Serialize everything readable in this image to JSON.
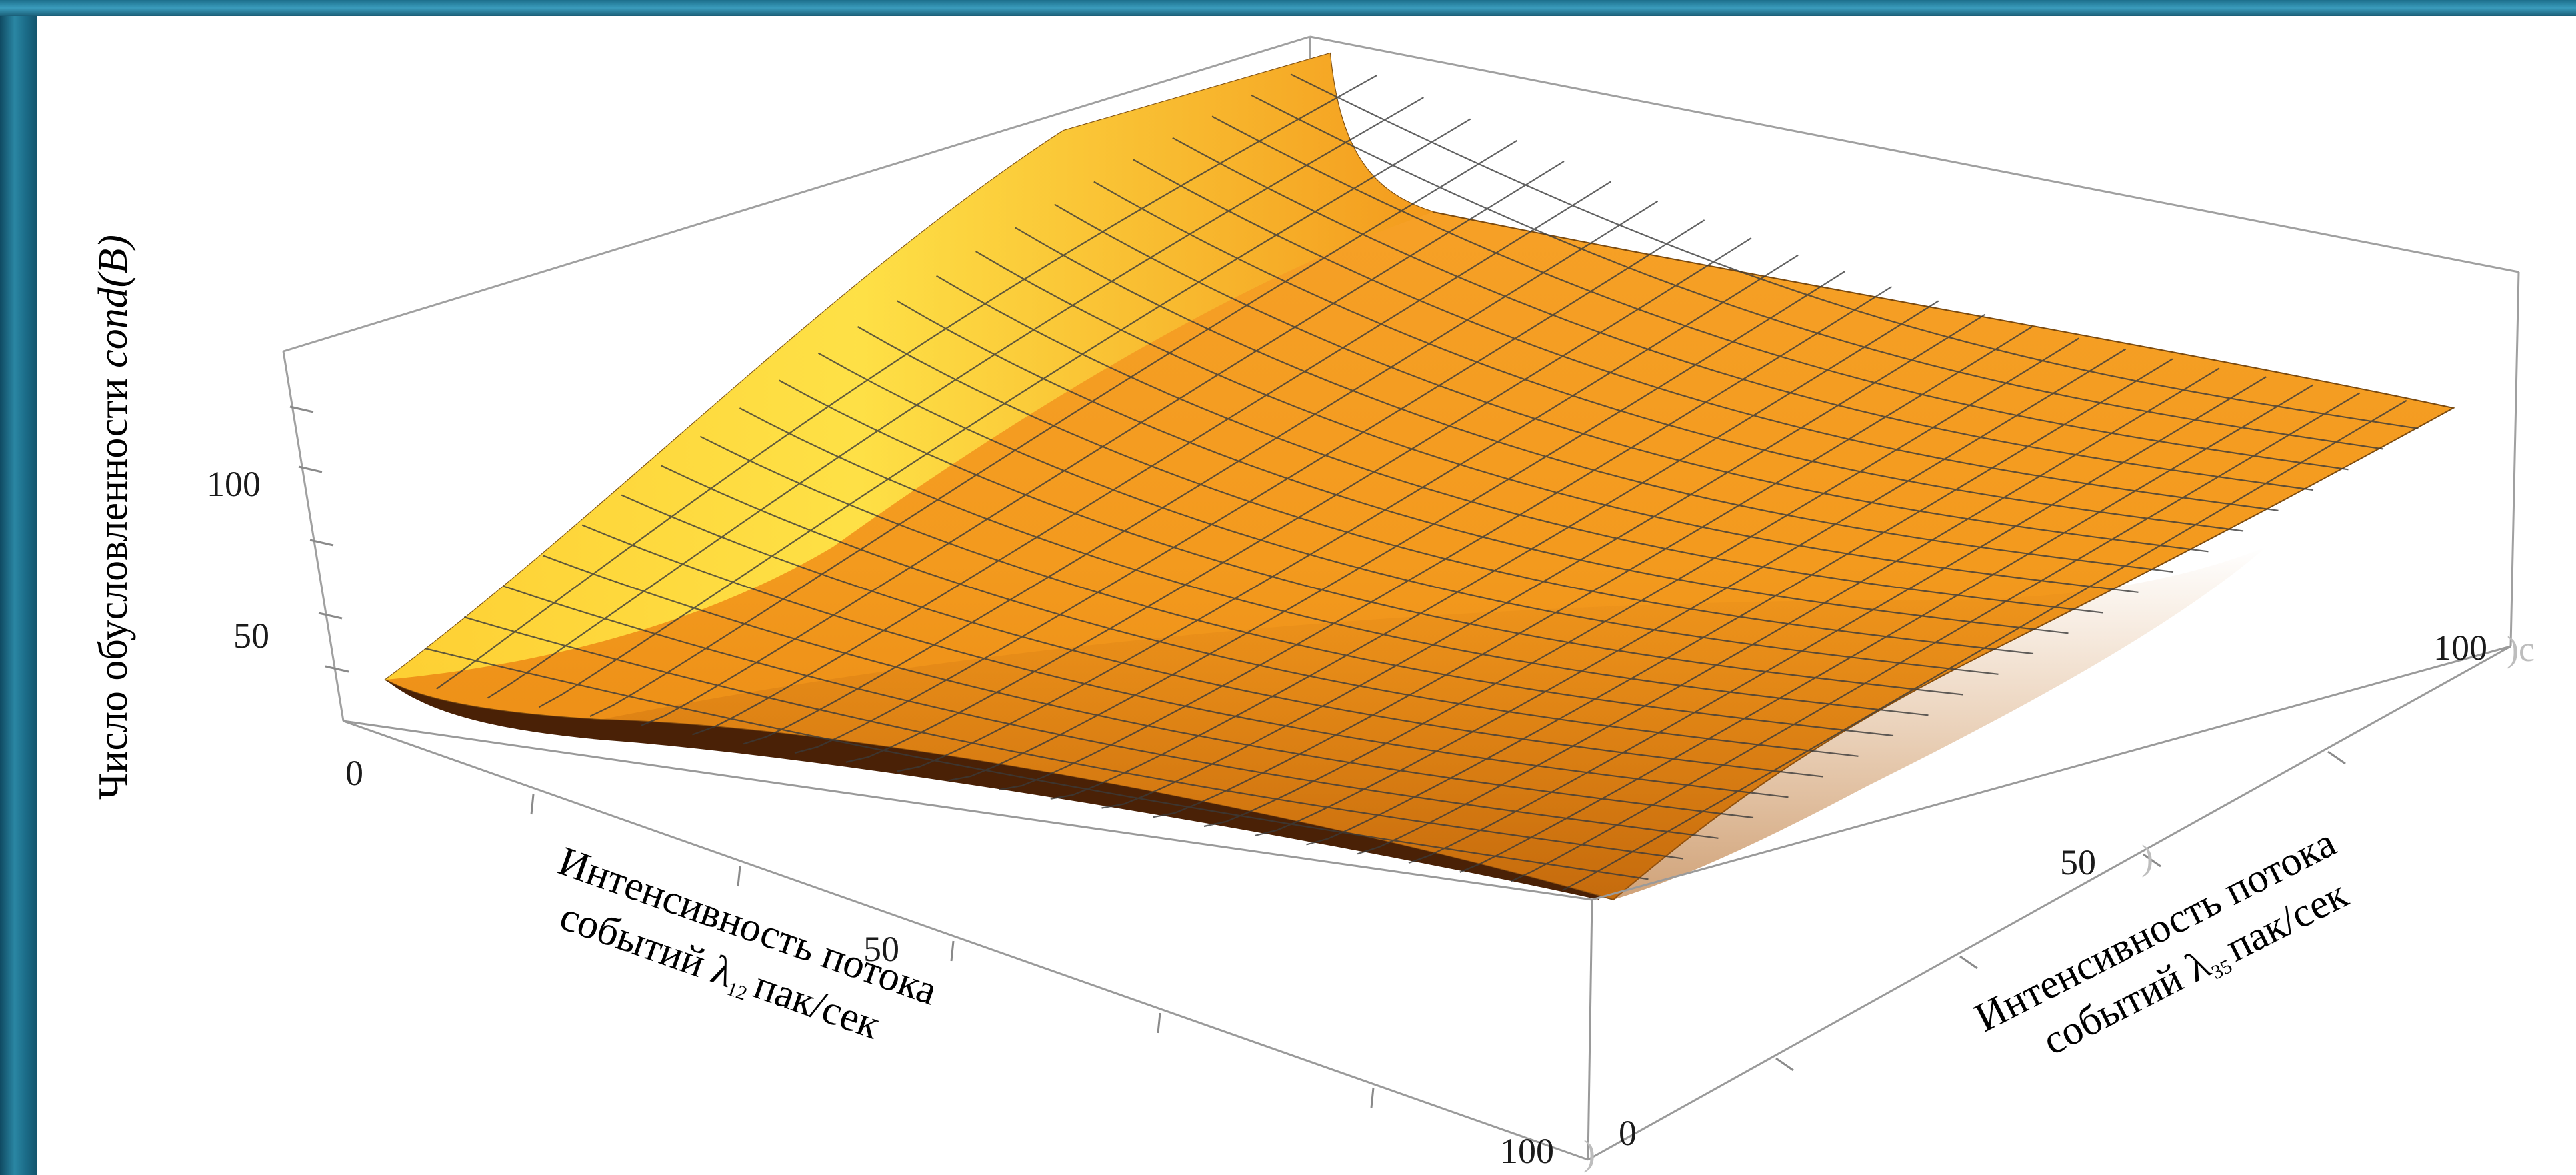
{
  "chart_data": {
    "type": "surface3d",
    "title": "",
    "z_label": {
      "prefix": "Число обусловленности ",
      "symbol": "cond(B)"
    },
    "x_label": {
      "line1": "Интенсивность потока",
      "line2_prefix": "событий λ",
      "line2_sub": "12",
      "line2_suffix": "пак/сек"
    },
    "y_label": {
      "line1": "Интенсивность потока",
      "line2_prefix": "событий λ",
      "line2_sub": "35",
      "line2_suffix": "пак/сек"
    },
    "x_ticks": [
      "0",
      "50",
      "100"
    ],
    "y_ticks": [
      "0",
      "50",
      "100"
    ],
    "z_ticks": [
      "50",
      "100"
    ],
    "x_range": [
      0,
      100
    ],
    "y_range": [
      0,
      100
    ],
    "z_range": [
      0,
      140
    ],
    "corner_values": {
      "x0_y0": 32,
      "x0_y100": 172,
      "x100_y0": 2,
      "x100_y100": 80
    },
    "surface_color": "#f49a1e",
    "highlight_color": "#ffe84a",
    "shadow_color": "#5a2a05",
    "mesh_color": "#3a3a3a",
    "box_color": "#9a9a9a",
    "grid": false
  }
}
